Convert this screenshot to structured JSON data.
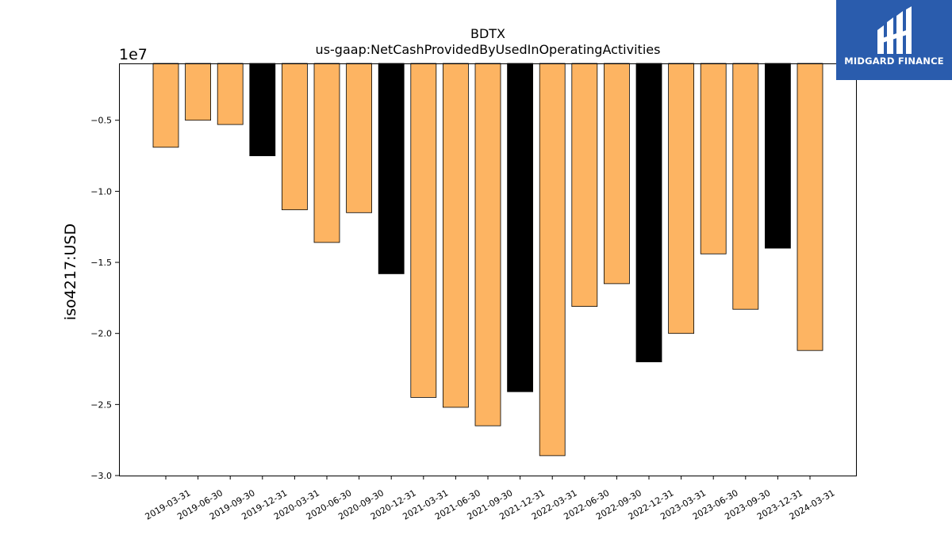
{
  "logo": {
    "text": "MIDGARD FINANCE"
  },
  "chart_data": {
    "type": "bar",
    "title_lines": [
      "BDTX",
      "us-gaap:NetCashProvidedByUsedInOperatingActivities"
    ],
    "ylabel": "iso4217:USD",
    "y_offset_text": "1e7",
    "ylim": [
      -3.0,
      -0.1
    ],
    "yticks": [
      -0.5,
      -1.0,
      -1.5,
      -2.0,
      -2.5,
      -3.0
    ],
    "ytick_labels": [
      "−0.5",
      "−1.0",
      "−1.5",
      "−2.0",
      "−2.5",
      "−3.0"
    ],
    "categories": [
      "2019-03-31",
      "2019-06-30",
      "2019-09-30",
      "2019-12-31",
      "2020-03-31",
      "2020-06-30",
      "2020-09-30",
      "2020-12-31",
      "2021-03-31",
      "2021-06-30",
      "2021-09-30",
      "2021-12-31",
      "2022-03-31",
      "2022-06-30",
      "2022-09-30",
      "2022-12-31",
      "2023-03-31",
      "2023-06-30",
      "2023-09-30",
      "2023-12-31",
      "2024-03-31"
    ],
    "values": [
      -0.69,
      -0.5,
      -0.53,
      -0.75,
      -1.13,
      -1.36,
      -1.15,
      -1.58,
      -2.45,
      -2.52,
      -2.65,
      -2.41,
      -2.86,
      -1.81,
      -1.65,
      -2.2,
      -2.0,
      -1.44,
      -1.83,
      -1.4,
      -2.12
    ],
    "bar_colors": [
      "#fdb462",
      "#fdb462",
      "#fdb462",
      "#000000",
      "#fdb462",
      "#fdb462",
      "#fdb462",
      "#000000",
      "#fdb462",
      "#fdb462",
      "#fdb462",
      "#000000",
      "#fdb462",
      "#fdb462",
      "#fdb462",
      "#000000",
      "#fdb462",
      "#fdb462",
      "#fdb462",
      "#000000",
      "#fdb462"
    ],
    "grid": false
  }
}
